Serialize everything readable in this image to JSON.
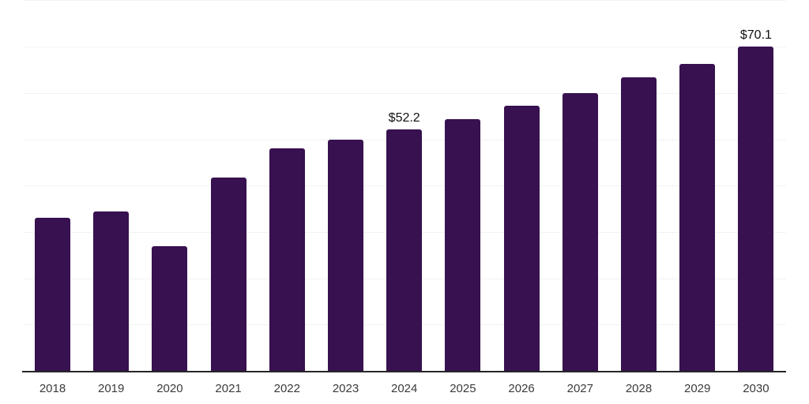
{
  "chart_data": {
    "type": "bar",
    "categories": [
      "2018",
      "2019",
      "2020",
      "2021",
      "2022",
      "2023",
      "2024",
      "2025",
      "2026",
      "2027",
      "2028",
      "2029",
      "2030"
    ],
    "values": [
      33.0,
      34.4,
      26.9,
      41.7,
      48.1,
      50.0,
      52.2,
      54.4,
      57.2,
      59.9,
      63.3,
      66.3,
      70.1
    ],
    "data_labels": [
      {
        "index": 6,
        "text": "$52.2"
      },
      {
        "index": 12,
        "text": "$70.1"
      }
    ],
    "title": "",
    "xlabel": "",
    "ylabel": "",
    "ylim": [
      0,
      80
    ],
    "gridline_step": 10,
    "grid": true,
    "legend_position": "none",
    "y_axis_labels_visible": false,
    "colors": {
      "bar": "#371150",
      "gridline": "#f2f2f2",
      "axis": "#262626",
      "tick_label": "#3b3b3b",
      "data_label": "#111111",
      "background": "#ffffff"
    }
  }
}
